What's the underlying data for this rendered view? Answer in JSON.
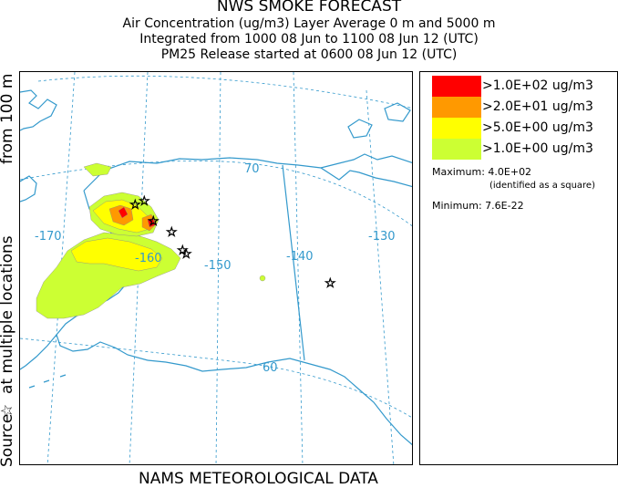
{
  "header": {
    "title": "NWS SMOKE FORECAST",
    "line2": "Air Concentration (ug/m3) Layer Average    0 m and  5000 m",
    "line3": "Integrated from 1000 08 Jun to 1100 08 Jun 12 (UTC)",
    "line4": "PM25 Release started at 0600 08 Jun 12 (UTC)"
  },
  "side_label": {
    "source": "Source",
    "multiple": "at multiple locations",
    "from": "from   100 m"
  },
  "footer": "NAMS METEOROLOGICAL DATA",
  "map": {
    "graticule_labels": {
      "lat_70": "70",
      "lat_60": "60",
      "lon_170": "-170",
      "lon_160": "-160",
      "lon_150": "-150",
      "lon_140": "-140",
      "lon_130": "-130"
    },
    "colors": {
      "coast": "#3399cc",
      "graticule": "#3399cc",
      "level1": "#ff0000",
      "level2": "#ff9900",
      "level3": "#ffff00",
      "level4": "#ccff33"
    }
  },
  "legend": {
    "items": [
      {
        "label": ">1.0E+02 ug/m3",
        "color": "#ff0000"
      },
      {
        "label": ">2.0E+01 ug/m3",
        "color": "#ff9900"
      },
      {
        "label": ">5.0E+00 ug/m3",
        "color": "#ffff00"
      },
      {
        "label": ">1.0E+00 ug/m3",
        "color": "#ccff33"
      }
    ],
    "maximum_label": "Maximum: 4.0E+02",
    "maximum_note": "(identified as a square)",
    "minimum_label": "Minimum: 7.6E-22"
  }
}
